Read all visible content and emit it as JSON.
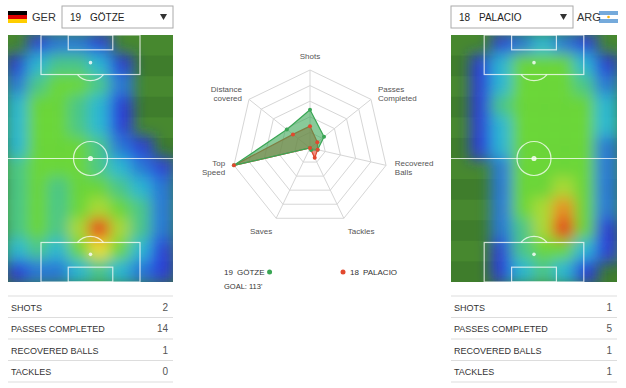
{
  "chart_data": [
    {
      "type": "heatmap",
      "team": "GER",
      "number": 19,
      "player": "GÖTZE",
      "zlim": [
        0,
        10
      ],
      "cells": [
        [
          0,
          1,
          2,
          2,
          1,
          0,
          0,
          0
        ],
        [
          1,
          3,
          4,
          4,
          3,
          1,
          0,
          0
        ],
        [
          2,
          4,
          5,
          5,
          4,
          2,
          0,
          0
        ],
        [
          3,
          5,
          5,
          4,
          3,
          1,
          0,
          0
        ],
        [
          3,
          5,
          5,
          4,
          3,
          1,
          0,
          0
        ],
        [
          3,
          5,
          5,
          5,
          4,
          2,
          1,
          0
        ],
        [
          4,
          5,
          5,
          5,
          4,
          3,
          2,
          1
        ],
        [
          4,
          5,
          4,
          5,
          5,
          4,
          3,
          2
        ],
        [
          4,
          5,
          4,
          5,
          6,
          5,
          4,
          2
        ],
        [
          4,
          5,
          4,
          6,
          9,
          6,
          4,
          2
        ],
        [
          3,
          4,
          3,
          5,
          7,
          5,
          3,
          1
        ],
        [
          1,
          2,
          2,
          3,
          4,
          3,
          2,
          1
        ]
      ],
      "stats": [
        {
          "label": "SHOTS",
          "value": 2
        },
        {
          "label": "PASSES COMPLETED",
          "value": 14
        },
        {
          "label": "RECOVERED BALLS",
          "value": 1
        },
        {
          "label": "TACKLES",
          "value": 0
        }
      ]
    },
    {
      "type": "radar",
      "categories": [
        "Shots",
        "Passes Completed",
        "Recovered Balls",
        "Tackles",
        "Saves",
        "Top Speed",
        "Distance covered"
      ],
      "rlim": [
        0,
        100
      ],
      "rticks": [
        20,
        40,
        60,
        80,
        100
      ],
      "tick_labels": false,
      "series": [
        {
          "name": "GÖTZE",
          "number": 19,
          "color": "#3aa655",
          "values": [
            49,
            23,
            10,
            3,
            0,
            100,
            38
          ]
        },
        {
          "name": "PALACIO",
          "number": 18,
          "color": "#e2482e",
          "values": [
            28,
            12,
            10,
            14,
            0,
            100,
            28
          ]
        }
      ],
      "annotation": "GOAL: 113'"
    },
    {
      "type": "heatmap",
      "team": "ARG",
      "number": 18,
      "player": "PALACIO",
      "zlim": [
        0,
        10
      ],
      "cells": [
        [
          0,
          0,
          1,
          2,
          3,
          2,
          1,
          0
        ],
        [
          0,
          1,
          3,
          5,
          5,
          5,
          3,
          1
        ],
        [
          0,
          1,
          3,
          5,
          5,
          5,
          4,
          2
        ],
        [
          0,
          1,
          4,
          5,
          5,
          5,
          5,
          3
        ],
        [
          0,
          1,
          3,
          5,
          5,
          5,
          5,
          3
        ],
        [
          0,
          1,
          3,
          5,
          5,
          5,
          5,
          2
        ],
        [
          0,
          0,
          2,
          5,
          5,
          5,
          5,
          2
        ],
        [
          0,
          0,
          2,
          5,
          5,
          6,
          5,
          2
        ],
        [
          0,
          0,
          2,
          5,
          6,
          8,
          5,
          2
        ],
        [
          0,
          0,
          2,
          4,
          6,
          9,
          5,
          1
        ],
        [
          0,
          0,
          1,
          4,
          5,
          5,
          3,
          1
        ],
        [
          0,
          0,
          1,
          3,
          4,
          3,
          1,
          0
        ]
      ],
      "stats": [
        {
          "label": "SHOTS",
          "value": 1
        },
        {
          "label": "PASSES COMPLETED",
          "value": 5
        },
        {
          "label": "RECOVERED BALLS",
          "value": 1
        },
        {
          "label": "TACKLES",
          "value": 1
        }
      ]
    }
  ]
}
